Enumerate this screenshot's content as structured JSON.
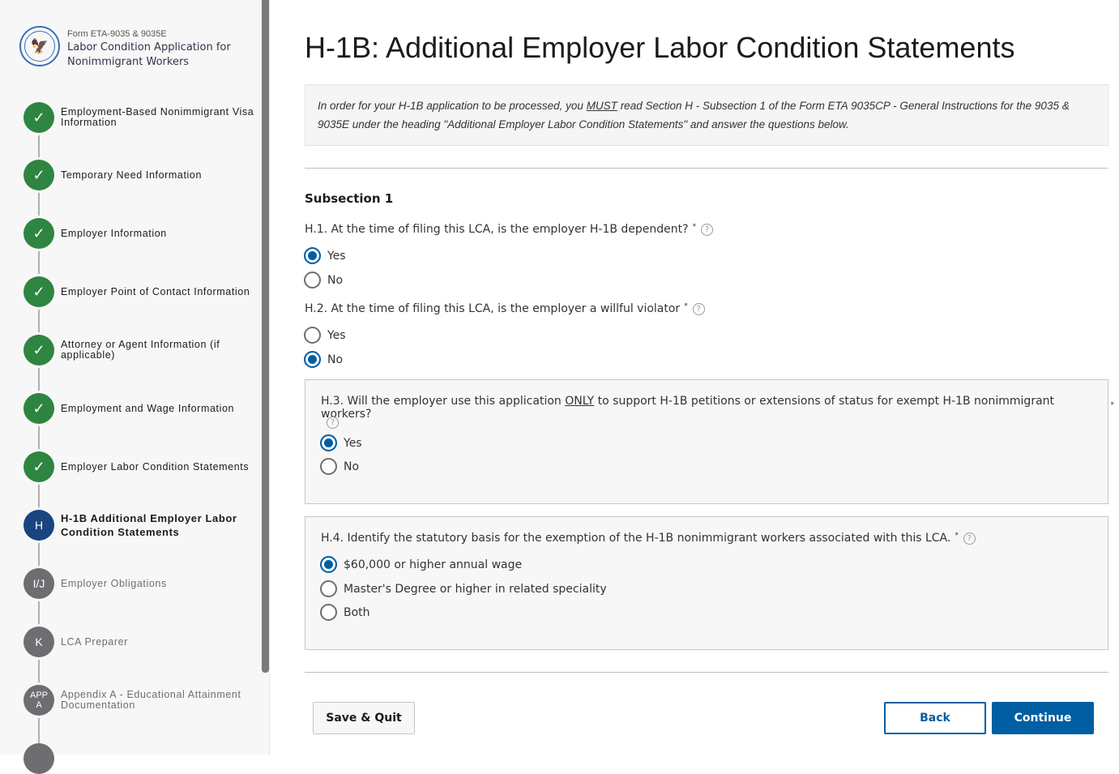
{
  "sidebar": {
    "form_number": "Form ETA-9035 & 9035E",
    "form_title": "Labor Condition Application for Nonimmigrant Workers",
    "steps": [
      {
        "badge": "",
        "label": "Employment-Based Nonimmigrant Visa Information",
        "status": "complete"
      },
      {
        "badge": "",
        "label": "Temporary Need Information",
        "status": "complete"
      },
      {
        "badge": "",
        "label": "Employer Information",
        "status": "complete"
      },
      {
        "badge": "",
        "label": "Employer Point of Contact Information",
        "status": "complete"
      },
      {
        "badge": "",
        "label": "Attorney or Agent Information (if applicable)",
        "status": "complete"
      },
      {
        "badge": "",
        "label": "Employment and Wage Information",
        "status": "complete"
      },
      {
        "badge": "",
        "label": "Employer Labor Condition Statements",
        "status": "complete"
      },
      {
        "badge": "H",
        "label": "H-1B Additional Employer Labor Condition Statements",
        "status": "current"
      },
      {
        "badge": "I/J",
        "label": "Employer Obligations",
        "status": "pending"
      },
      {
        "badge": "K",
        "label": "LCA Preparer",
        "status": "pending"
      },
      {
        "badge": "APP A",
        "label": "Appendix A - Educational Attainment Documentation",
        "status": "pending"
      }
    ]
  },
  "main": {
    "title": "H-1B: Additional Employer Labor Condition Statements",
    "info_pre": "In order for your H-1B application to be processed, you ",
    "info_em": "MUST",
    "info_post": " read Section H - Subsection 1 of the Form ETA 9035CP - General Instructions for the 9035 & 9035E under the heading \"Additional Employer Labor Condition Statements\" and answer the questions below.",
    "subsection": "Subsection 1",
    "questions": [
      {
        "text": "H.1. At the time of filing this LCA, is the employer H-1B dependent?",
        "options": [
          "Yes",
          "No"
        ],
        "selected": "Yes"
      },
      {
        "text": "H.2. At the time of filing this LCA, is the employer a willful violator",
        "options": [
          "Yes",
          "No"
        ],
        "selected": "No"
      },
      {
        "text_pre": "H.3. Will the employer use this application ",
        "text_em": "ONLY",
        "text_post": " to support H-1B petitions or extensions of status for exempt H-1B nonimmigrant workers?",
        "options": [
          "Yes",
          "No"
        ],
        "selected": "Yes"
      },
      {
        "text": "H.4. Identify the statutory basis for the exemption of the H-1B nonimmigrant workers associated with this LCA.",
        "options": [
          "$60,000 or higher annual wage",
          "Master's Degree or higher in related speciality",
          "Both"
        ],
        "selected": "$60,000 or higher annual wage"
      }
    ],
    "required_mark": "*",
    "help_glyph": "?",
    "save_quit": "Save & Quit",
    "back": "Back",
    "continue": "Continue"
  },
  "colors": {
    "complete": "#2e8540",
    "current": "#1a4480",
    "pending": "#6e6e72",
    "primary": "#005ea2"
  }
}
